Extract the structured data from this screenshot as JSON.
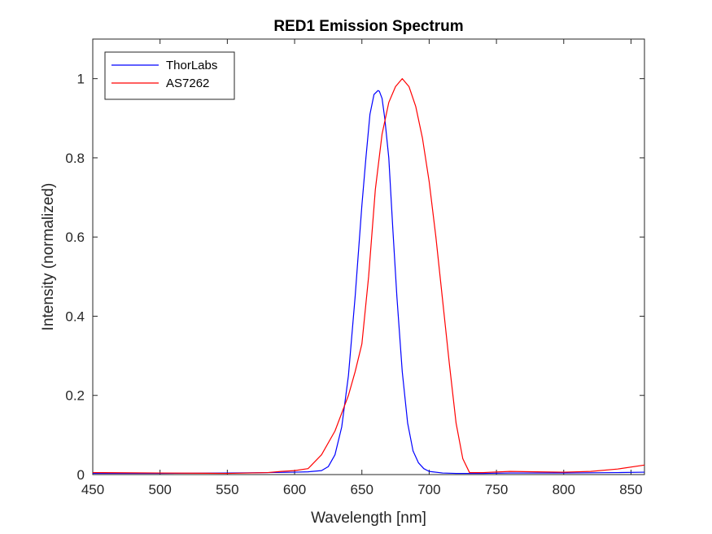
{
  "chart_data": {
    "type": "line",
    "title": "RED1 Emission Spectrum",
    "xlabel": "Wavelength [nm]",
    "ylabel": "Intensity (normalized)",
    "xlim": [
      450,
      860
    ],
    "ylim": [
      0,
      1.1
    ],
    "xticks": [
      450,
      500,
      550,
      600,
      650,
      700,
      750,
      800,
      850
    ],
    "yticks": [
      0,
      0.2,
      0.4,
      0.6,
      0.8,
      1
    ],
    "ytick_labels": [
      "0",
      "0.2",
      "0.4",
      "0.6",
      "0.8",
      "1"
    ],
    "grid": false,
    "legend_position": "top-left",
    "series": [
      {
        "name": "ThorLabs",
        "color": "#0000ff",
        "x": [
          450,
          500,
          550,
          580,
          600,
          610,
          620,
          625,
          630,
          635,
          640,
          645,
          650,
          653,
          656,
          659,
          662,
          663,
          665,
          667,
          670,
          673,
          676,
          680,
          684,
          688,
          692,
          696,
          700,
          710,
          720,
          740,
          760,
          800,
          840,
          860
        ],
        "y": [
          0.003,
          0.003,
          0.004,
          0.005,
          0.006,
          0.007,
          0.01,
          0.02,
          0.05,
          0.12,
          0.25,
          0.45,
          0.68,
          0.8,
          0.91,
          0.96,
          0.97,
          0.968,
          0.95,
          0.9,
          0.8,
          0.62,
          0.45,
          0.26,
          0.13,
          0.06,
          0.03,
          0.015,
          0.008,
          0.004,
          0.003,
          0.003,
          0.004,
          0.004,
          0.005,
          0.006
        ]
      },
      {
        "name": "AS7262",
        "color": "#ff0000",
        "x": [
          450,
          500,
          550,
          580,
          590,
          600,
          610,
          620,
          630,
          640,
          645,
          650,
          655,
          660,
          665,
          670,
          675,
          680,
          685,
          690,
          695,
          700,
          705,
          710,
          715,
          720,
          725,
          730,
          740,
          760,
          780,
          800,
          820,
          840,
          860
        ],
        "y": [
          0.005,
          0.004,
          0.003,
          0.005,
          0.008,
          0.01,
          0.015,
          0.05,
          0.11,
          0.2,
          0.26,
          0.33,
          0.5,
          0.72,
          0.86,
          0.94,
          0.98,
          1.0,
          0.98,
          0.93,
          0.85,
          0.74,
          0.6,
          0.44,
          0.28,
          0.13,
          0.04,
          0.005,
          0.005,
          0.008,
          0.007,
          0.006,
          0.008,
          0.014,
          0.024
        ]
      }
    ]
  }
}
